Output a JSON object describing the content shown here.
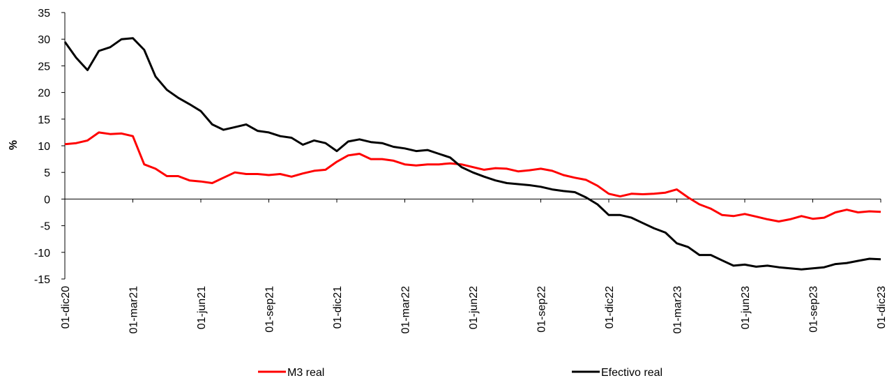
{
  "chart_data": {
    "type": "line",
    "ylabel": "%",
    "categories": [
      "01-dic20",
      null,
      null,
      null,
      null,
      null,
      "01-mar21",
      null,
      null,
      null,
      null,
      null,
      "01-jun21",
      null,
      null,
      null,
      null,
      null,
      "01-sep21",
      null,
      null,
      null,
      null,
      null,
      "01-dic21",
      null,
      null,
      null,
      null,
      null,
      "01-mar22",
      null,
      null,
      null,
      null,
      null,
      "01-jun22",
      null,
      null,
      null,
      null,
      null,
      "01-sep22",
      null,
      null,
      null,
      null,
      null,
      "01-dic22",
      null,
      null,
      null,
      null,
      null,
      "01-mar23",
      null,
      null,
      null,
      null,
      null,
      "01-jun23",
      null,
      null,
      null,
      null,
      null,
      "01-sep23",
      null,
      null,
      null,
      null,
      null,
      "01-dic23"
    ],
    "series": [
      {
        "name": "M3 real",
        "color": "#ff0000",
        "values": [
          10.3,
          10.5,
          11,
          12.5,
          12.2,
          12.3,
          11.8,
          6.5,
          5.7,
          4.3,
          4.3,
          3.5,
          3.3,
          3,
          4,
          5,
          4.7,
          4.7,
          4.5,
          4.7,
          4.2,
          4.8,
          5.3,
          5.5,
          7,
          8.2,
          8.5,
          7.5,
          7.5,
          7.2,
          6.5,
          6.3,
          6.5,
          6.5,
          6.7,
          6.5,
          6,
          5.5,
          5.8,
          5.7,
          5.2,
          5.4,
          5.7,
          5.3,
          4.5,
          4,
          3.6,
          2.5,
          1,
          0.5,
          1,
          0.9,
          1,
          1.2,
          1.8,
          0.3,
          -1,
          -1.8,
          -3,
          -3.2,
          -2.8,
          -3.3,
          -3.8,
          -4.2,
          -3.8,
          -3.2,
          -3.7,
          -3.5,
          -2.5,
          -2,
          -2.5,
          -2.3,
          -2.4
        ]
      },
      {
        "name": "Efectivo real",
        "color": "#000000",
        "values": [
          29.5,
          26.5,
          24.2,
          27.8,
          28.5,
          30,
          30.2,
          28,
          23,
          20.5,
          19,
          17.8,
          16.5,
          14,
          13,
          13.5,
          14,
          12.8,
          12.5,
          11.8,
          11.5,
          10.2,
          11,
          10.5,
          9,
          10.8,
          11.2,
          10.7,
          10.5,
          9.8,
          9.5,
          9,
          9.2,
          8.5,
          7.8,
          6,
          5,
          4.2,
          3.5,
          3,
          2.8,
          2.6,
          2.3,
          1.8,
          1.5,
          1.3,
          0.3,
          -1,
          -3,
          -3,
          -3.5,
          -4.5,
          -5.5,
          -6.3,
          -8.3,
          -9,
          -10.5,
          -10.5,
          -11.5,
          -12.5,
          -12.3,
          -12.7,
          -12.5,
          -12.8,
          -13,
          -13.2,
          -13,
          -12.8,
          -12.2,
          -12,
          -11.6,
          -11.2,
          -11.3
        ]
      }
    ],
    "ylim": [
      -15,
      35
    ],
    "yticks": [
      -15,
      -10,
      -5,
      0,
      5,
      10,
      15,
      20,
      25,
      30,
      35
    ],
    "grid": false
  }
}
